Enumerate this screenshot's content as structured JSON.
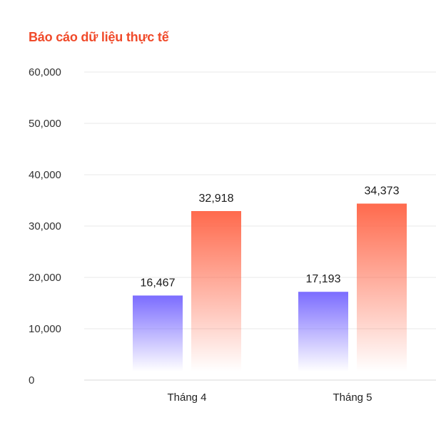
{
  "chart_data": {
    "type": "bar",
    "title": "Báo cáo dữ liệu thực tế",
    "categories": [
      "Tháng 4",
      "Tháng 5"
    ],
    "series": [
      {
        "values": [
          16467,
          17193
        ],
        "color": "#7b6cff"
      },
      {
        "values": [
          32918,
          34373
        ],
        "color": "#ff6a4d"
      }
    ],
    "data_labels": [
      [
        "16,467",
        "17,193"
      ],
      [
        "32,918",
        "34,373"
      ]
    ],
    "y_ticks": [
      "0",
      "10,000",
      "20,000",
      "30,000",
      "40,000",
      "50,000",
      "60,000"
    ],
    "ylim": [
      0,
      60000
    ],
    "grid": true
  }
}
